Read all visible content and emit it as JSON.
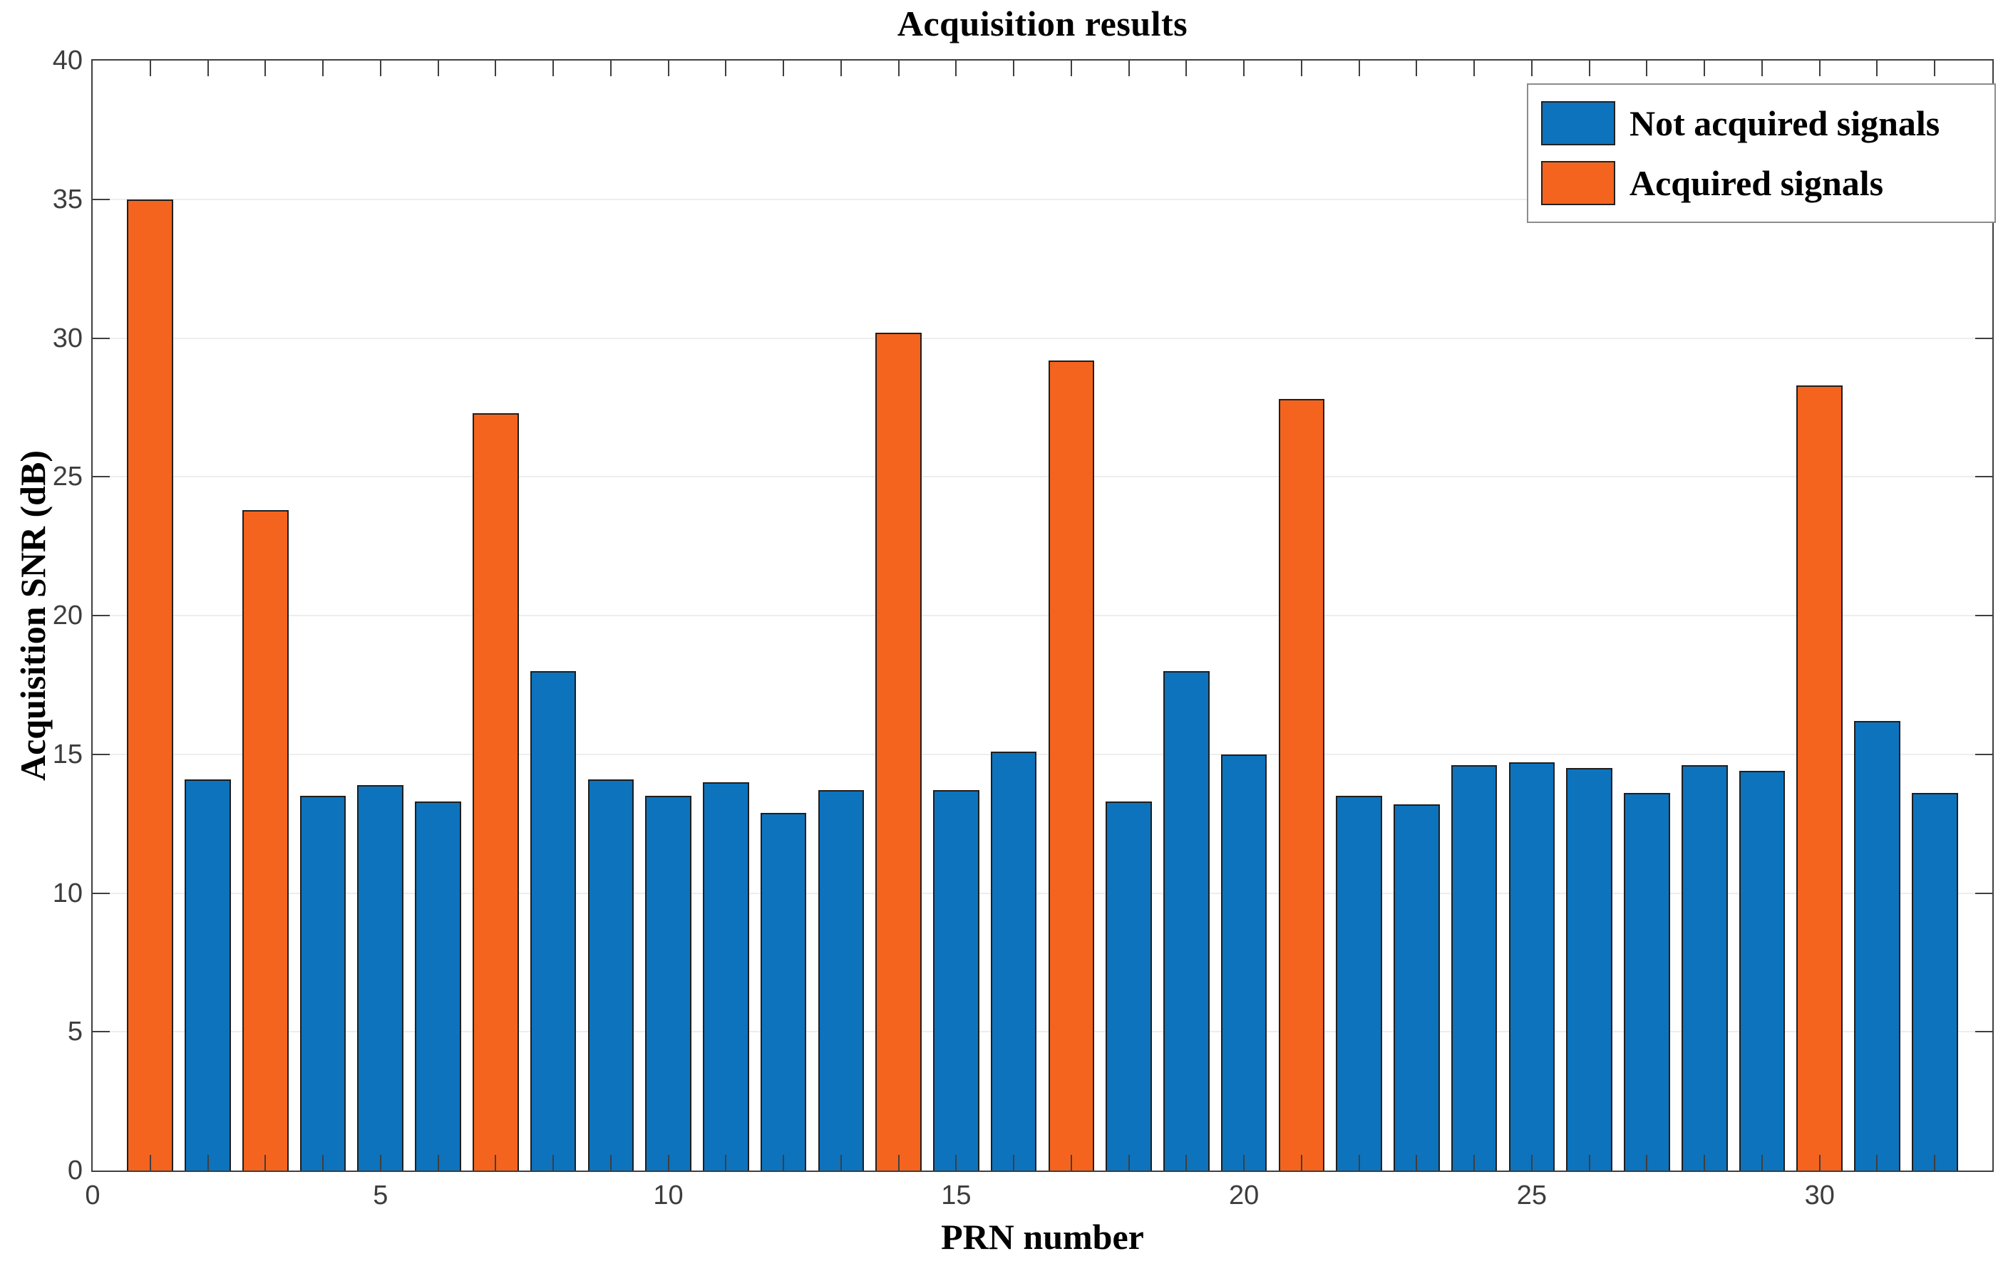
{
  "figure": {
    "title": "Acquisition results",
    "xlabel": "PRN number",
    "ylabel": "Acquisition SNR (dB)"
  },
  "legend": {
    "items": [
      {
        "label": "Not acquired signals",
        "key": "not_acquired",
        "color": "#0d73bd"
      },
      {
        "label": "Acquired signals",
        "key": "acquired",
        "color": "#f4641e"
      }
    ]
  },
  "colors": {
    "not_acquired": "#0d73bd",
    "acquired": "#f4641e",
    "bar_edge": "#1f1f1f",
    "axis": "#3f3f3f",
    "grid": "#ededed",
    "tick_label": "#3d3d3d"
  },
  "chart_data": {
    "type": "bar",
    "title": "Acquisition results",
    "xlabel": "PRN number",
    "ylabel": "Acquisition SNR (dB)",
    "xlim": [
      0,
      33
    ],
    "ylim": [
      0,
      40
    ],
    "xticks": [
      0,
      5,
      10,
      15,
      20,
      25,
      30
    ],
    "yticks": [
      0,
      5,
      10,
      15,
      20,
      25,
      30,
      35,
      40
    ],
    "minor_xtick_step": 1,
    "bar_width": 0.8,
    "grid": "horizontal",
    "legend_position": "top-right",
    "series": [
      {
        "name": "Not acquired signals",
        "color": "#0d73bd"
      },
      {
        "name": "Acquired signals",
        "color": "#f4641e"
      }
    ],
    "bars": [
      {
        "prn": 1,
        "snr": 35.0,
        "acquired": true
      },
      {
        "prn": 2,
        "snr": 14.1,
        "acquired": false
      },
      {
        "prn": 3,
        "snr": 23.8,
        "acquired": true
      },
      {
        "prn": 4,
        "snr": 13.5,
        "acquired": false
      },
      {
        "prn": 5,
        "snr": 13.9,
        "acquired": false
      },
      {
        "prn": 6,
        "snr": 13.3,
        "acquired": false
      },
      {
        "prn": 7,
        "snr": 27.3,
        "acquired": true
      },
      {
        "prn": 8,
        "snr": 18.0,
        "acquired": false
      },
      {
        "prn": 9,
        "snr": 14.1,
        "acquired": false
      },
      {
        "prn": 10,
        "snr": 13.5,
        "acquired": false
      },
      {
        "prn": 11,
        "snr": 14.0,
        "acquired": false
      },
      {
        "prn": 12,
        "snr": 12.9,
        "acquired": false
      },
      {
        "prn": 13,
        "snr": 13.7,
        "acquired": false
      },
      {
        "prn": 14,
        "snr": 30.2,
        "acquired": true
      },
      {
        "prn": 15,
        "snr": 13.7,
        "acquired": false
      },
      {
        "prn": 16,
        "snr": 15.1,
        "acquired": false
      },
      {
        "prn": 17,
        "snr": 29.2,
        "acquired": true
      },
      {
        "prn": 18,
        "snr": 13.3,
        "acquired": false
      },
      {
        "prn": 19,
        "snr": 18.0,
        "acquired": false
      },
      {
        "prn": 20,
        "snr": 15.0,
        "acquired": false
      },
      {
        "prn": 21,
        "snr": 27.8,
        "acquired": true
      },
      {
        "prn": 22,
        "snr": 13.5,
        "acquired": false
      },
      {
        "prn": 23,
        "snr": 13.2,
        "acquired": false
      },
      {
        "prn": 24,
        "snr": 14.6,
        "acquired": false
      },
      {
        "prn": 25,
        "snr": 14.7,
        "acquired": false
      },
      {
        "prn": 26,
        "snr": 14.5,
        "acquired": false
      },
      {
        "prn": 27,
        "snr": 13.6,
        "acquired": false
      },
      {
        "prn": 28,
        "snr": 14.6,
        "acquired": false
      },
      {
        "prn": 29,
        "snr": 14.4,
        "acquired": false
      },
      {
        "prn": 30,
        "snr": 28.3,
        "acquired": true
      },
      {
        "prn": 31,
        "snr": 16.2,
        "acquired": false
      },
      {
        "prn": 32,
        "snr": 13.6,
        "acquired": false
      }
    ]
  }
}
